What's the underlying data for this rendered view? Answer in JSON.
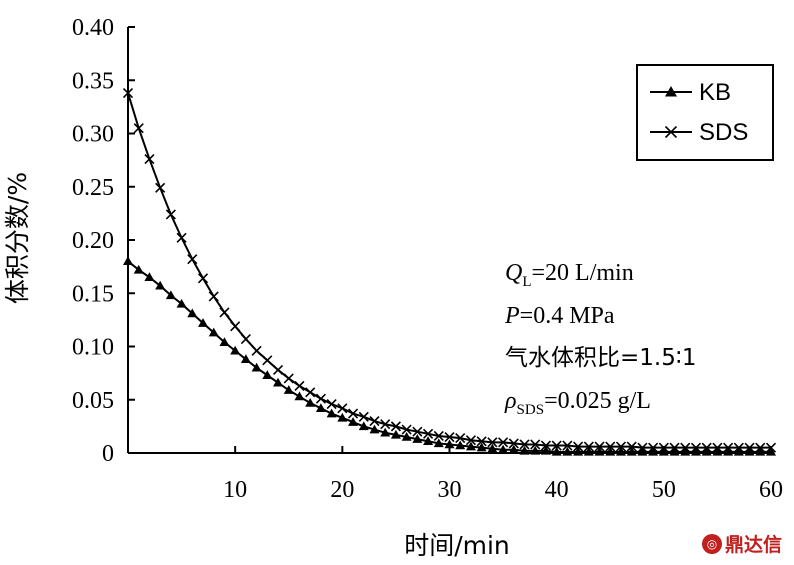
{
  "chart_data": {
    "type": "line",
    "xlabel": "时间/min",
    "ylabel": "体积分数/%",
    "xlim": [
      0,
      60
    ],
    "ylim": [
      0,
      0.4
    ],
    "xticks": [
      "10",
      "20",
      "30",
      "40",
      "50",
      "60"
    ],
    "xtick_values": [
      10,
      20,
      30,
      40,
      50,
      60
    ],
    "yticks": [
      "0",
      "0.05",
      "0.10",
      "0.15",
      "0.20",
      "0.25",
      "0.30",
      "0.35",
      "0.40"
    ],
    "ytick_values": [
      0,
      0.05,
      0.1,
      0.15,
      0.2,
      0.25,
      0.3,
      0.35,
      0.4
    ],
    "legend_position": "top-right",
    "x": [
      0,
      1,
      2,
      3,
      4,
      5,
      6,
      7,
      8,
      9,
      10,
      11,
      12,
      13,
      14,
      15,
      16,
      17,
      18,
      19,
      20,
      21,
      22,
      23,
      24,
      25,
      26,
      27,
      28,
      29,
      30,
      31,
      32,
      33,
      34,
      35,
      36,
      37,
      38,
      39,
      40,
      41,
      42,
      43,
      44,
      45,
      46,
      47,
      48,
      49,
      50,
      51,
      52,
      53,
      54,
      55,
      56,
      57,
      58,
      59,
      60
    ],
    "series": [
      {
        "name": "KB",
        "marker": "triangle",
        "values": [
          0.18,
          0.172,
          0.165,
          0.157,
          0.148,
          0.14,
          0.131,
          0.122,
          0.113,
          0.104,
          0.096,
          0.088,
          0.08,
          0.073,
          0.066,
          0.059,
          0.053,
          0.047,
          0.042,
          0.037,
          0.033,
          0.029,
          0.025,
          0.022,
          0.019,
          0.017,
          0.015,
          0.013,
          0.011,
          0.009,
          0.008,
          0.007,
          0.006,
          0.005,
          0.004,
          0.003,
          0.003,
          0.002,
          0.002,
          0.002,
          0.001,
          0.001,
          0.001,
          0.001,
          0.001,
          0.001,
          0.001,
          0.001,
          0.001,
          0.001,
          0.001,
          0.001,
          0.001,
          0.001,
          0.001,
          0.001,
          0.001,
          0.001,
          0.001,
          0.001,
          0.001
        ]
      },
      {
        "name": "SDS",
        "marker": "x",
        "values": [
          0.338,
          0.305,
          0.276,
          0.249,
          0.224,
          0.202,
          0.182,
          0.164,
          0.147,
          0.132,
          0.119,
          0.107,
          0.096,
          0.087,
          0.078,
          0.07,
          0.063,
          0.057,
          0.051,
          0.046,
          0.042,
          0.037,
          0.034,
          0.03,
          0.027,
          0.025,
          0.022,
          0.02,
          0.018,
          0.016,
          0.015,
          0.014,
          0.012,
          0.011,
          0.01,
          0.01,
          0.009,
          0.008,
          0.008,
          0.007,
          0.007,
          0.007,
          0.006,
          0.006,
          0.006,
          0.006,
          0.006,
          0.006,
          0.005,
          0.005,
          0.005,
          0.005,
          0.005,
          0.005,
          0.005,
          0.005,
          0.005,
          0.005,
          0.005,
          0.005,
          0.005
        ]
      }
    ],
    "annotations": {
      "ql_symbol": "Q",
      "ql_sub": "L",
      "ql_value": "=20 L/min",
      "p_symbol": "P",
      "p_value": "=0.4 MPa",
      "ratio": "气水体积比=1.5∶1",
      "rho_symbol": "ρ",
      "rho_sub": "SDS",
      "rho_value": "=0.025 g/L"
    }
  },
  "watermark": {
    "logo": "◎",
    "text": "鼎达信"
  }
}
